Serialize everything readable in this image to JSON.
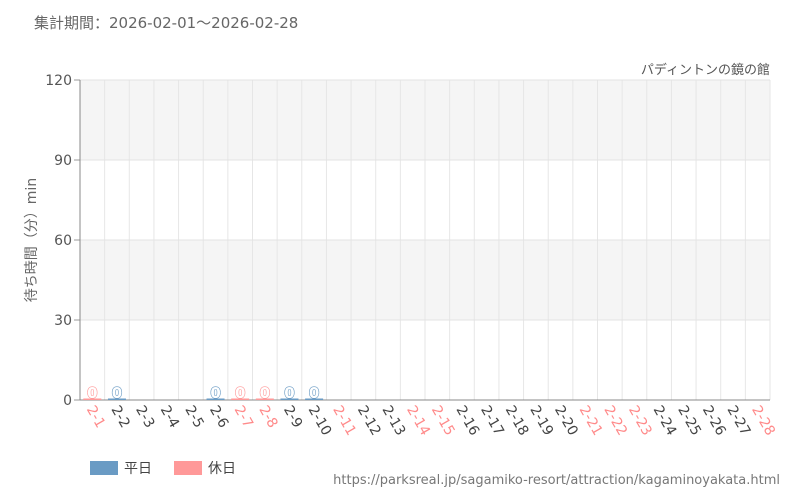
{
  "header": {
    "period_text": "集計期間：2026-02-01～2026-02-28",
    "location": "パディントンの鏡の館"
  },
  "legend": [
    {
      "name": "平日",
      "color": "#6a9bc4"
    },
    {
      "name": "休日",
      "color": "#ff9999"
    }
  ],
  "footer": {
    "source_url": "https://parksreal.jp/sagamiko-resort/attraction/kagaminoyakata.html"
  },
  "chart_data": {
    "type": "bar",
    "ylabel": "待ち時間（分）min",
    "ylim": [
      0,
      120
    ],
    "yticks": [
      0,
      30,
      60,
      90,
      120
    ],
    "grid": true,
    "legend_position": "bottom-left",
    "categories": [
      "2-1",
      "2-2",
      "2-3",
      "2-4",
      "2-5",
      "2-6",
      "2-7",
      "2-8",
      "2-9",
      "2-10",
      "2-11",
      "2-12",
      "2-13",
      "2-14",
      "2-15",
      "2-16",
      "2-17",
      "2-18",
      "2-19",
      "2-20",
      "2-21",
      "2-22",
      "2-23",
      "2-24",
      "2-25",
      "2-26",
      "2-27",
      "2-28"
    ],
    "day_types": [
      "holiday",
      "weekday",
      "weekday",
      "weekday",
      "weekday",
      "weekday",
      "holiday",
      "holiday",
      "weekday",
      "weekday",
      "holiday",
      "weekday",
      "weekday",
      "holiday",
      "holiday",
      "weekday",
      "weekday",
      "weekday",
      "weekday",
      "weekday",
      "holiday",
      "holiday",
      "holiday",
      "weekday",
      "weekday",
      "weekday",
      "weekday",
      "holiday"
    ],
    "values": [
      0,
      0,
      null,
      null,
      null,
      0,
      0,
      0,
      0,
      0,
      null,
      null,
      null,
      null,
      null,
      null,
      null,
      null,
      null,
      null,
      null,
      null,
      null,
      null,
      null,
      null,
      null,
      null
    ],
    "colors": {
      "weekday": "#6a9bc4",
      "holiday": "#ff9999",
      "weekday_tick": "#444444",
      "holiday_tick": "#ff8a8a"
    }
  }
}
